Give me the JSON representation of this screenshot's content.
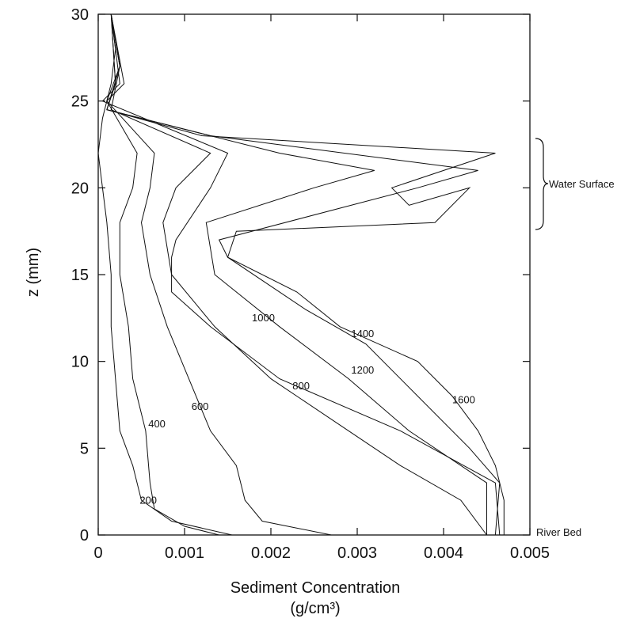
{
  "chart_data": {
    "type": "line",
    "xlabel": "Sediment Concentration",
    "xlabel_units": "(g/cm³)",
    "ylabel": "z (mm)",
    "xlim": [
      0,
      0.005
    ],
    "ylim": [
      0,
      30
    ],
    "x_ticks": [
      "0",
      "0.001",
      "0.002",
      "0.003",
      "0.004",
      "0.005"
    ],
    "y_ticks": [
      "0",
      "5",
      "10",
      "15",
      "20",
      "25",
      "30"
    ],
    "annotations": {
      "water_surface": "Water Surface",
      "river_bed": "River Bed"
    },
    "series": [
      {
        "name": "200",
        "points": [
          [
            0.00015,
            30
          ],
          [
            0.0002,
            28
          ],
          [
            0.00015,
            26
          ],
          [
            5e-05,
            24
          ],
          [
            0.0,
            22
          ],
          [
            5e-05,
            20
          ],
          [
            0.0001,
            18
          ],
          [
            0.00015,
            15
          ],
          [
            0.00015,
            12
          ],
          [
            0.0002,
            9
          ],
          [
            0.00025,
            6
          ],
          [
            0.0004,
            4
          ],
          [
            0.0005,
            2
          ],
          [
            0.00085,
            0.8
          ],
          [
            0.00155,
            0
          ]
        ]
      },
      {
        "name": "400",
        "points": [
          [
            0.00015,
            30
          ],
          [
            0.00025,
            27
          ],
          [
            0.0001,
            25
          ],
          [
            0.00045,
            22
          ],
          [
            0.0004,
            20
          ],
          [
            0.00025,
            18
          ],
          [
            0.00025,
            15
          ],
          [
            0.00035,
            12
          ],
          [
            0.0004,
            9
          ],
          [
            0.00055,
            6
          ],
          [
            0.0006,
            3
          ],
          [
            0.00065,
            1.5
          ],
          [
            0.001,
            0.5
          ],
          [
            0.0014,
            0
          ]
        ]
      },
      {
        "name": "600",
        "points": [
          [
            0.00015,
            30
          ],
          [
            0.0003,
            26
          ],
          [
            0.0001,
            25
          ],
          [
            0.00065,
            22
          ],
          [
            0.0006,
            20
          ],
          [
            0.0005,
            18
          ],
          [
            0.0006,
            15
          ],
          [
            0.0008,
            12
          ],
          [
            0.00105,
            9
          ],
          [
            0.0013,
            6
          ],
          [
            0.0016,
            4
          ],
          [
            0.0017,
            2
          ],
          [
            0.0019,
            0.8
          ],
          [
            0.0027,
            0
          ]
        ]
      },
      {
        "name": "800",
        "points": [
          [
            0.00015,
            30
          ],
          [
            0.00025,
            27
          ],
          [
            0.00015,
            24.5
          ],
          [
            0.0013,
            22
          ],
          [
            0.0009,
            20
          ],
          [
            0.00075,
            18
          ],
          [
            0.00085,
            15
          ],
          [
            0.00135,
            12
          ],
          [
            0.002,
            9
          ],
          [
            0.0029,
            6
          ],
          [
            0.0035,
            4
          ],
          [
            0.0042,
            2
          ],
          [
            0.0045,
            0
          ]
        ]
      },
      {
        "name": "1000",
        "points": [
          [
            0.00015,
            30
          ],
          [
            0.00025,
            26
          ],
          [
            5e-05,
            25
          ],
          [
            0.0015,
            22
          ],
          [
            0.0013,
            20
          ],
          [
            0.0009,
            17
          ],
          [
            0.00085,
            16
          ],
          [
            0.00085,
            14
          ],
          [
            0.0013,
            12
          ],
          [
            0.0021,
            9
          ],
          [
            0.0035,
            6
          ],
          [
            0.0046,
            3
          ],
          [
            0.00465,
            0
          ]
        ]
      },
      {
        "name": "1200",
        "points": [
          [
            0.00015,
            30
          ],
          [
            0.0002,
            26
          ],
          [
            0.0001,
            24.5
          ],
          [
            0.0021,
            22
          ],
          [
            0.0032,
            21
          ],
          [
            0.0025,
            20
          ],
          [
            0.00125,
            18
          ],
          [
            0.00135,
            15
          ],
          [
            0.0021,
            12
          ],
          [
            0.0029,
            9
          ],
          [
            0.0036,
            6
          ],
          [
            0.0045,
            3
          ],
          [
            0.0045,
            0
          ]
        ]
      },
      {
        "name": "1400",
        "points": [
          [
            0.00015,
            30
          ],
          [
            0.00025,
            27
          ],
          [
            0.0001,
            24.5
          ],
          [
            0.0013,
            23
          ],
          [
            0.0044,
            21
          ],
          [
            0.0037,
            20
          ],
          [
            0.0014,
            17
          ],
          [
            0.0015,
            16
          ],
          [
            0.0024,
            13
          ],
          [
            0.0031,
            11
          ],
          [
            0.0037,
            8
          ],
          [
            0.0043,
            5
          ],
          [
            0.00465,
            3
          ],
          [
            0.0046,
            0
          ]
        ]
      },
      {
        "name": "1600",
        "points": [
          [
            0.00015,
            30
          ],
          [
            0.0002,
            26
          ],
          [
            0.0001,
            24.5
          ],
          [
            0.0012,
            23
          ],
          [
            0.0046,
            22
          ],
          [
            0.0034,
            20
          ],
          [
            0.0036,
            19
          ],
          [
            0.0043,
            20
          ],
          [
            0.0039,
            18
          ],
          [
            0.0016,
            17.5
          ],
          [
            0.0015,
            16
          ],
          [
            0.0023,
            14
          ],
          [
            0.0028,
            12
          ],
          [
            0.0037,
            10
          ],
          [
            0.0041,
            8
          ],
          [
            0.0044,
            6
          ],
          [
            0.0046,
            4
          ],
          [
            0.0047,
            2
          ],
          [
            0.0047,
            0
          ]
        ]
      }
    ]
  }
}
